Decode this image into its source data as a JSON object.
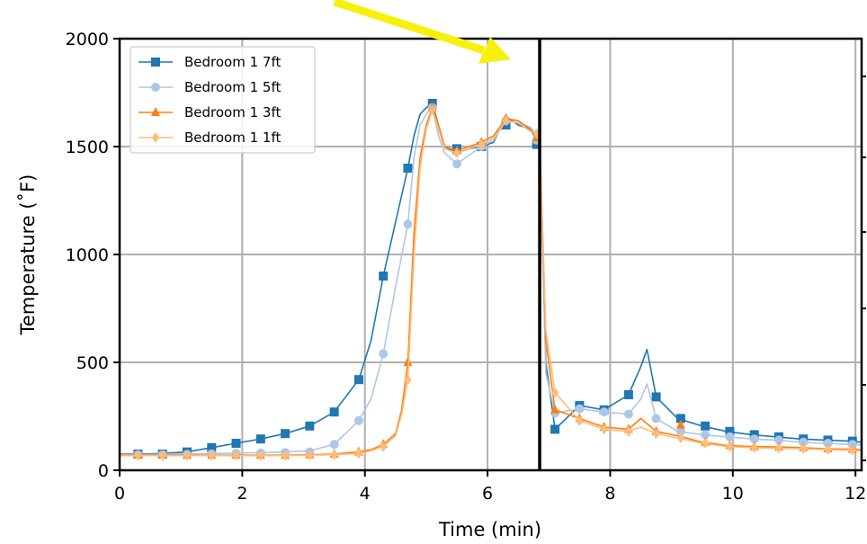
{
  "chart_data": {
    "type": "line",
    "xlabel": "Time (min)",
    "ylabel": "Temperature ( $^\\circ$F)",
    "ylabel_display": "Temperature (˚F)",
    "xlim": [
      0,
      12.1
    ],
    "ylim": [
      0,
      2000
    ],
    "x_ticks": [
      0,
      2,
      4,
      6,
      8,
      10,
      12
    ],
    "x_tick_labels": [
      "0",
      "2",
      "4",
      "6",
      "8",
      "10",
      "12"
    ],
    "y_ticks": [
      0,
      500,
      1000,
      1500,
      2000
    ],
    "y_tick_labels": [
      "0",
      "500",
      "1000",
      "1500",
      "2000"
    ],
    "grid": true,
    "legend_position": "top-left",
    "vertical_line_x": 6.85,
    "annotation": "yellow arrow pointing down-right toward the peak region",
    "series": [
      {
        "name": "Bedroom 1 7ft",
        "color": "#1f77b4",
        "marker": "square",
        "x": [
          0.0,
          0.3,
          0.7,
          1.1,
          1.5,
          1.9,
          2.3,
          2.7,
          3.1,
          3.5,
          3.9,
          4.1,
          4.3,
          4.5,
          4.7,
          4.8,
          4.9,
          5.0,
          5.1,
          5.2,
          5.3,
          5.5,
          5.7,
          5.9,
          6.1,
          6.3,
          6.5,
          6.7,
          6.85,
          6.95,
          7.1,
          7.5,
          7.9,
          8.3,
          8.5,
          8.6,
          8.75,
          9.1,
          9.5,
          9.9,
          10.3,
          10.7,
          11.1,
          11.5,
          11.9,
          12.1
        ],
        "y": [
          75,
          75,
          78,
          85,
          105,
          125,
          145,
          170,
          205,
          270,
          420,
          600,
          900,
          1150,
          1400,
          1550,
          1650,
          1680,
          1700,
          1600,
          1500,
          1470,
          1490,
          1500,
          1520,
          1640,
          1600,
          1580,
          1510,
          500,
          190,
          300,
          280,
          350,
          480,
          560,
          340,
          240,
          205,
          180,
          165,
          155,
          145,
          140,
          135,
          130
        ],
        "marker_x": [
          0.3,
          0.7,
          1.1,
          1.5,
          1.9,
          2.3,
          2.7,
          3.1,
          3.5,
          3.9,
          4.3,
          4.7,
          5.1,
          5.5,
          5.9,
          6.3,
          6.8,
          7.1,
          7.5,
          7.9,
          8.3,
          8.75,
          9.15,
          9.55,
          9.95,
          10.35,
          10.75,
          11.15,
          11.55,
          11.95
        ],
        "marker_y": [
          75,
          75,
          85,
          105,
          125,
          145,
          170,
          205,
          270,
          420,
          900,
          1400,
          1700,
          1490,
          1500,
          1600,
          1510,
          190,
          300,
          280,
          350,
          340,
          240,
          205,
          180,
          165,
          155,
          145,
          140,
          135
        ]
      },
      {
        "name": "Bedroom 1 5ft",
        "color": "#aec7e8",
        "marker": "circle",
        "x": [
          0.0,
          0.3,
          0.7,
          1.1,
          1.5,
          1.9,
          2.3,
          2.7,
          3.1,
          3.5,
          3.9,
          4.1,
          4.3,
          4.5,
          4.7,
          4.8,
          4.9,
          5.0,
          5.1,
          5.2,
          5.3,
          5.5,
          5.7,
          5.9,
          6.1,
          6.3,
          6.5,
          6.7,
          6.85,
          6.95,
          7.1,
          7.5,
          7.9,
          8.3,
          8.5,
          8.6,
          8.75,
          9.1,
          9.5,
          9.9,
          10.3,
          10.7,
          11.1,
          11.5,
          11.9,
          12.1
        ],
        "y": [
          72,
          72,
          74,
          76,
          78,
          80,
          82,
          85,
          90,
          120,
          230,
          330,
          540,
          850,
          1140,
          1450,
          1600,
          1650,
          1680,
          1550,
          1470,
          1420,
          1460,
          1500,
          1530,
          1620,
          1610,
          1590,
          1530,
          450,
          265,
          285,
          270,
          260,
          330,
          400,
          240,
          180,
          165,
          155,
          145,
          140,
          130,
          125,
          120,
          118
        ],
        "marker_x": [
          0.3,
          0.7,
          1.1,
          1.5,
          1.9,
          2.3,
          2.7,
          3.1,
          3.5,
          3.9,
          4.3,
          4.7,
          5.1,
          5.5,
          5.9,
          6.3,
          6.8,
          7.1,
          7.5,
          7.9,
          8.3,
          8.75,
          9.15,
          9.55,
          9.95,
          10.35,
          10.75,
          11.15,
          11.55,
          11.95
        ],
        "marker_y": [
          72,
          72,
          74,
          76,
          78,
          80,
          82,
          85,
          120,
          230,
          540,
          1140,
          1680,
          1420,
          1500,
          1620,
          1530,
          265,
          285,
          270,
          260,
          240,
          180,
          165,
          155,
          145,
          140,
          130,
          125,
          120
        ]
      },
      {
        "name": "Bedroom 1 3ft",
        "color": "#ff7f0e",
        "marker": "triangle",
        "x": [
          0.0,
          0.3,
          0.7,
          1.1,
          1.5,
          1.9,
          2.3,
          2.7,
          3.1,
          3.5,
          3.9,
          4.1,
          4.3,
          4.5,
          4.6,
          4.7,
          4.8,
          4.9,
          5.0,
          5.1,
          5.2,
          5.3,
          5.5,
          5.7,
          5.9,
          6.1,
          6.3,
          6.5,
          6.7,
          6.85,
          6.95,
          7.1,
          7.5,
          7.9,
          8.3,
          8.5,
          8.75,
          9.1,
          9.5,
          9.9,
          10.3,
          10.7,
          11.1,
          11.5,
          11.9,
          12.1
        ],
        "y": [
          70,
          70,
          70,
          70,
          70,
          70,
          70,
          70,
          72,
          75,
          85,
          95,
          120,
          170,
          280,
          500,
          1100,
          1450,
          1600,
          1680,
          1600,
          1500,
          1480,
          1500,
          1520,
          1550,
          1630,
          1620,
          1580,
          1540,
          600,
          280,
          240,
          200,
          190,
          240,
          180,
          160,
          130,
          115,
          110,
          108,
          105,
          100,
          98,
          95
        ],
        "marker_x": [
          0.3,
          0.7,
          1.1,
          1.5,
          1.9,
          2.3,
          2.7,
          3.1,
          3.5,
          3.9,
          4.3,
          4.7,
          5.1,
          5.5,
          5.9,
          6.3,
          6.8,
          7.1,
          7.5,
          7.9,
          8.3,
          8.75,
          9.15,
          9.55,
          9.95,
          10.35,
          10.75,
          11.15,
          11.55,
          11.95
        ],
        "marker_y": [
          70,
          70,
          70,
          70,
          70,
          70,
          70,
          72,
          75,
          85,
          120,
          500,
          1680,
          1480,
          1520,
          1630,
          1540,
          280,
          240,
          200,
          190,
          180,
          210,
          130,
          115,
          110,
          108,
          105,
          100,
          98
        ]
      },
      {
        "name": "Bedroom 1 1ft",
        "color": "#ffbb78",
        "marker": "diamond",
        "x": [
          0.0,
          0.3,
          0.7,
          1.1,
          1.5,
          1.9,
          2.3,
          2.7,
          3.1,
          3.5,
          3.9,
          4.1,
          4.3,
          4.5,
          4.6,
          4.7,
          4.8,
          4.9,
          5.0,
          5.1,
          5.2,
          5.3,
          5.5,
          5.7,
          5.9,
          6.1,
          6.3,
          6.5,
          6.7,
          6.85,
          6.95,
          7.1,
          7.5,
          7.9,
          8.3,
          8.5,
          8.75,
          9.1,
          9.5,
          9.9,
          10.3,
          10.7,
          11.1,
          11.5,
          11.9,
          12.1
        ],
        "y": [
          68,
          68,
          68,
          68,
          68,
          68,
          68,
          68,
          70,
          72,
          78,
          90,
          110,
          160,
          260,
          420,
          1000,
          1400,
          1580,
          1670,
          1580,
          1490,
          1470,
          1490,
          1510,
          1540,
          1620,
          1610,
          1570,
          1560,
          650,
          360,
          230,
          190,
          180,
          200,
          170,
          150,
          125,
          110,
          105,
          102,
          100,
          96,
          93,
          90
        ],
        "marker_x": [
          0.3,
          0.7,
          1.1,
          1.5,
          1.9,
          2.3,
          2.7,
          3.1,
          3.5,
          3.9,
          4.3,
          4.7,
          5.1,
          5.5,
          5.9,
          6.3,
          6.8,
          7.1,
          7.5,
          7.9,
          8.3,
          8.75,
          9.15,
          9.55,
          9.95,
          10.35,
          10.75,
          11.15,
          11.55,
          11.95
        ],
        "marker_y": [
          68,
          68,
          68,
          68,
          68,
          68,
          68,
          70,
          72,
          78,
          110,
          420,
          1670,
          1470,
          1510,
          1620,
          1560,
          360,
          230,
          190,
          180,
          170,
          150,
          125,
          110,
          105,
          102,
          100,
          96,
          93
        ]
      }
    ]
  }
}
